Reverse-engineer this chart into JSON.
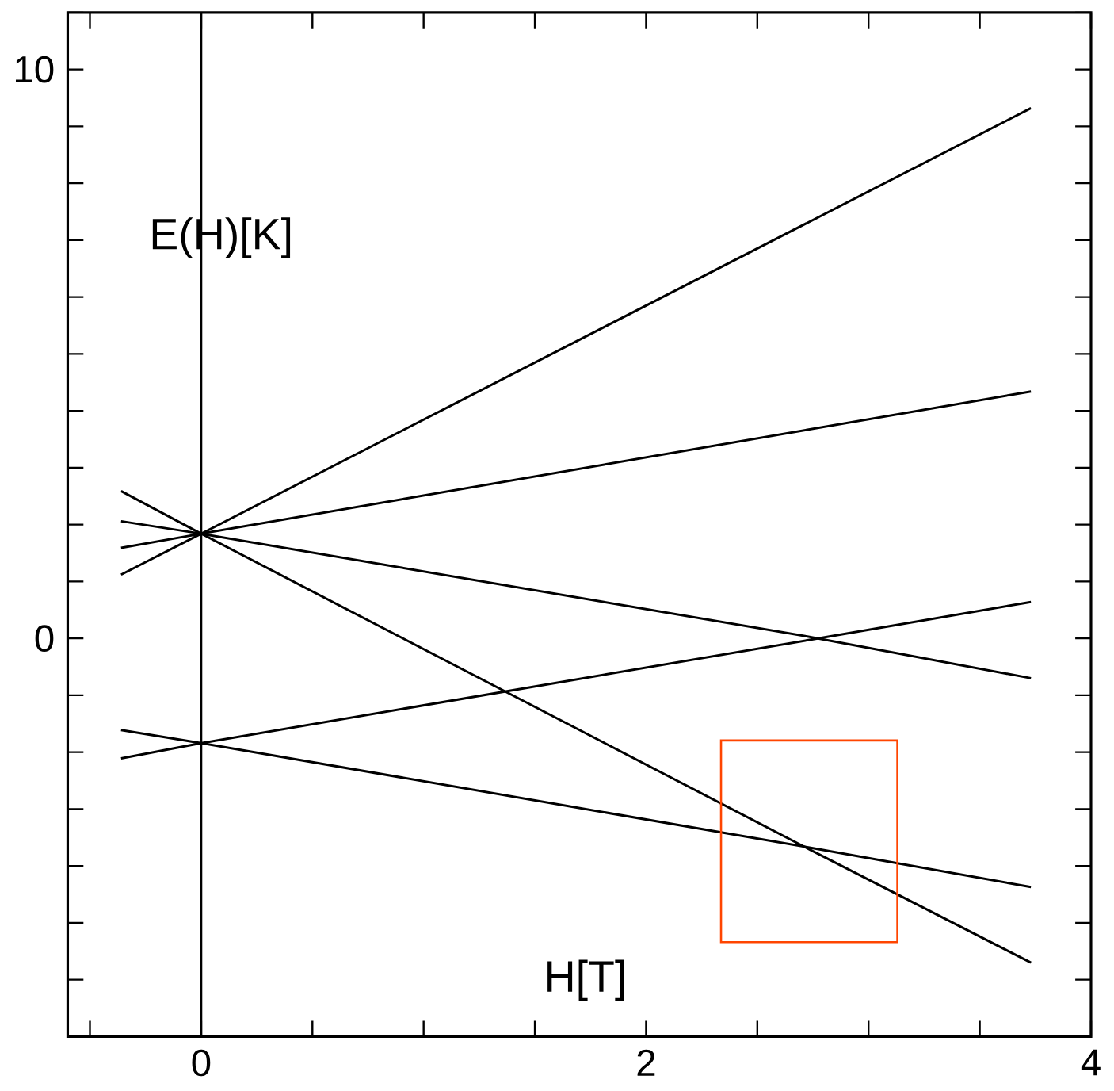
{
  "chart_data": {
    "type": "line",
    "xlabel": "H[T]",
    "ylabel": "E(H)[K]",
    "xlim": [
      -0.6,
      4
    ],
    "ylim": [
      -7,
      11
    ],
    "xticks": [
      {
        "value": -0.5,
        "label": null
      },
      0,
      {
        "value": 0.5,
        "label": null
      },
      {
        "value": 1,
        "label": null
      },
      {
        "value": 1.5,
        "label": null
      },
      2,
      {
        "value": 2.5,
        "label": null
      },
      {
        "value": 3,
        "label": null
      },
      {
        "value": 3.5,
        "label": null
      },
      4
    ],
    "yticks": [
      {
        "value": -7,
        "label": null
      },
      {
        "value": -6,
        "label": null
      },
      {
        "value": -5,
        "label": null
      },
      {
        "value": -4,
        "label": null
      },
      {
        "value": -3,
        "label": null
      },
      {
        "value": -2,
        "label": null
      },
      {
        "value": -1,
        "label": null
      },
      0,
      {
        "value": 1,
        "label": null
      },
      {
        "value": 2,
        "label": null
      },
      {
        "value": 3,
        "label": null
      },
      {
        "value": 4,
        "label": null
      },
      {
        "value": 5,
        "label": null
      },
      {
        "value": 6,
        "label": null
      },
      {
        "value": 7,
        "label": null
      },
      {
        "value": 8,
        "label": null
      },
      {
        "value": 9,
        "label": null
      },
      10,
      {
        "value": 11,
        "label": null
      }
    ],
    "ref_lines": [
      {
        "axis": "x",
        "value": 0,
        "color": "#000000"
      }
    ],
    "grid": false,
    "marker": "none",
    "series": [
      {
        "color": "#000000",
        "x": [
          -0.36,
          0,
          3.73
        ],
        "values": [
          1.12,
          1.84,
          9.32
        ]
      },
      {
        "color": "#000000",
        "x": [
          -0.36,
          0,
          3.73
        ],
        "values": [
          1.59,
          1.84,
          4.34
        ]
      },
      {
        "color": "#000000",
        "x": [
          -0.36,
          0,
          2.73,
          3.73
        ],
        "values": [
          2.06,
          1.84,
          0.03,
          -0.7
        ]
      },
      {
        "color": "#000000",
        "x": [
          -0.36,
          0,
          2.74,
          3.73
        ],
        "values": [
          2.59,
          1.84,
          -3.72,
          -5.7
        ]
      },
      {
        "color": "#000000",
        "x": [
          -0.36,
          0,
          2.73,
          3.73
        ],
        "values": [
          -2.11,
          -1.84,
          -0.03,
          0.64
        ]
      },
      {
        "color": "#000000",
        "x": [
          -0.36,
          0,
          2.74,
          3.73
        ],
        "values": [
          -1.61,
          -1.84,
          -3.68,
          -4.37
        ]
      }
    ]
  }
}
